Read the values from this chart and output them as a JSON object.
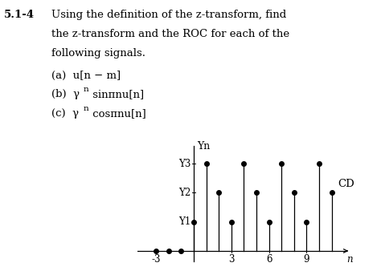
{
  "title_number": "5.1-4",
  "title_lines": [
    "Using the definition of the z-transform, find",
    "the z-transform and the ROC for each of the",
    "following signals."
  ],
  "item_a": "(a)  u[n − m]",
  "item_b_pre": "(b)  γ",
  "item_b_post": " sinπnu[n]",
  "item_c_pre": "(c)  γ",
  "item_c_post": " cosπnu[n]",
  "ylabel": "Yn",
  "xlabel": "n",
  "annotation": "CD",
  "y_tick_labels": [
    "Y1",
    "Y2",
    "Y3"
  ],
  "y_tick_values": [
    1,
    2,
    3
  ],
  "x_tick_labels": [
    "-3",
    "3",
    "6",
    "9"
  ],
  "x_tick_values": [
    -3,
    3,
    6,
    9
  ],
  "xlim": [
    -4.5,
    12.5
  ],
  "ylim": [
    -0.45,
    3.9
  ],
  "stem_n": [
    -3,
    -2,
    -1,
    0,
    1,
    2,
    3,
    4,
    5,
    6,
    7,
    8,
    9,
    10,
    11
  ],
  "stem_y": [
    0,
    0,
    0,
    1,
    3,
    2,
    1,
    3,
    2,
    1,
    3,
    2,
    1,
    3,
    2
  ],
  "background_color": "#ffffff",
  "text_color": "#000000",
  "line_color": "#000000",
  "marker_color": "#000000",
  "fontsize_title": 9.5,
  "fontsize_items": 9.5,
  "fontsize_axis": 8.5,
  "figsize": [
    4.74,
    3.43
  ],
  "dpi": 100
}
